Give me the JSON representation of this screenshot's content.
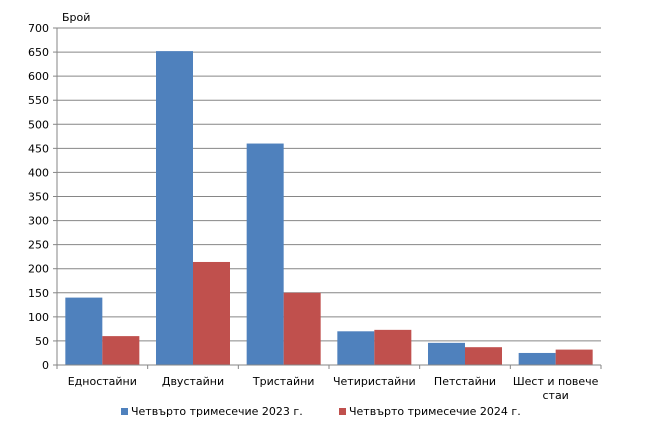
{
  "chart_data": {
    "type": "bar",
    "ylabel": "Брой",
    "ylim": [
      0,
      700
    ],
    "ytick_step": 50,
    "grid": true,
    "legend_position": "bottom",
    "categories": [
      [
        "Едностайни"
      ],
      [
        "Двустайни"
      ],
      [
        "Тристайни"
      ],
      [
        "Четиристайни"
      ],
      [
        "Петстайни"
      ],
      [
        "Шест и повече",
        "стаи"
      ]
    ],
    "series": [
      {
        "name": "Четвърто тримесечие 2023 г.",
        "color": "#4f81bd",
        "values": [
          140,
          652,
          460,
          70,
          46,
          25
        ]
      },
      {
        "name": "Четвърто тримесечие 2024 г.",
        "color": "#c0504d",
        "values": [
          60,
          214,
          150,
          73,
          37,
          32
        ]
      }
    ]
  }
}
